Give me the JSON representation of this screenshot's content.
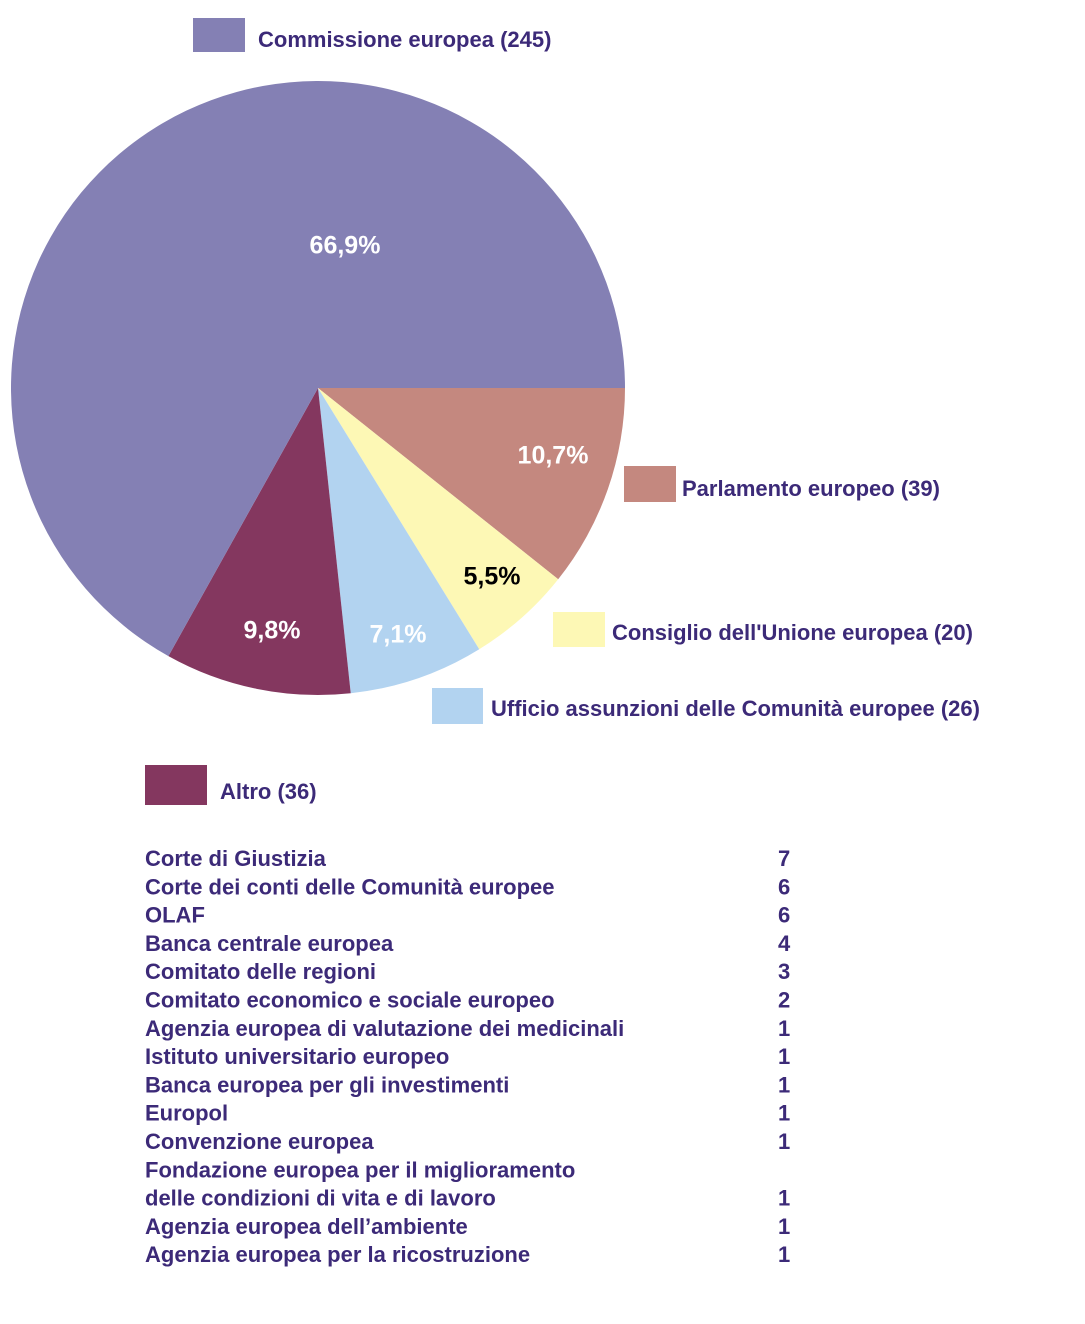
{
  "chart_data": {
    "type": "pie",
    "series": [
      {
        "name": "Commissione europea  (245)",
        "color": "#8480b4",
        "values": [
          66.9
        ],
        "value_labels": [
          "66,9%"
        ],
        "label_color": "#ffffff"
      },
      {
        "name": "Parlamento europeo (39)",
        "color": "#c4887f",
        "values": [
          10.7
        ],
        "value_labels": [
          "10,7%"
        ],
        "label_color": "#ffffff"
      },
      {
        "name": "Consiglio dell'Unione europea (20)",
        "color": "#fdf8b5",
        "values": [
          5.5
        ],
        "value_labels": [
          "5,5%"
        ],
        "label_color": "#000000"
      },
      {
        "name": "Ufficio assunzioni delle Comunità europee (26)",
        "color": "#b2d3f0",
        "values": [
          7.1
        ],
        "value_labels": [
          "7,1%"
        ],
        "label_color": "#ffffff"
      },
      {
        "name": "Altro (36)",
        "color": "#84375f",
        "values": [
          9.8
        ],
        "value_labels": [
          "9,8%"
        ],
        "label_color": "#ffffff"
      }
    ]
  },
  "table": {
    "rows": [
      [
        "Corte di Giustizia",
        7
      ],
      [
        "Corte dei conti delle Comunità europee",
        6
      ],
      [
        "OLAF",
        6
      ],
      [
        "Banca centrale europea",
        4
      ],
      [
        "Comitato delle regioni",
        3
      ],
      [
        "Comitato economico e sociale europeo",
        2
      ],
      [
        "Agenzia europea di valutazione dei medicinali",
        1
      ],
      [
        "Istituto universitario europeo",
        1
      ],
      [
        "Banca europea per gli investimenti",
        1
      ],
      [
        "Europol",
        1
      ],
      [
        "Convenzione europea",
        1
      ],
      [
        "Fondazione europea per il miglioramento\ndelle condizioni di vita e di lavoro",
        1
      ],
      [
        "Agenzia europea dell’ambiente",
        1
      ],
      [
        "Agenzia europea per la ricostruzione",
        1
      ]
    ]
  }
}
